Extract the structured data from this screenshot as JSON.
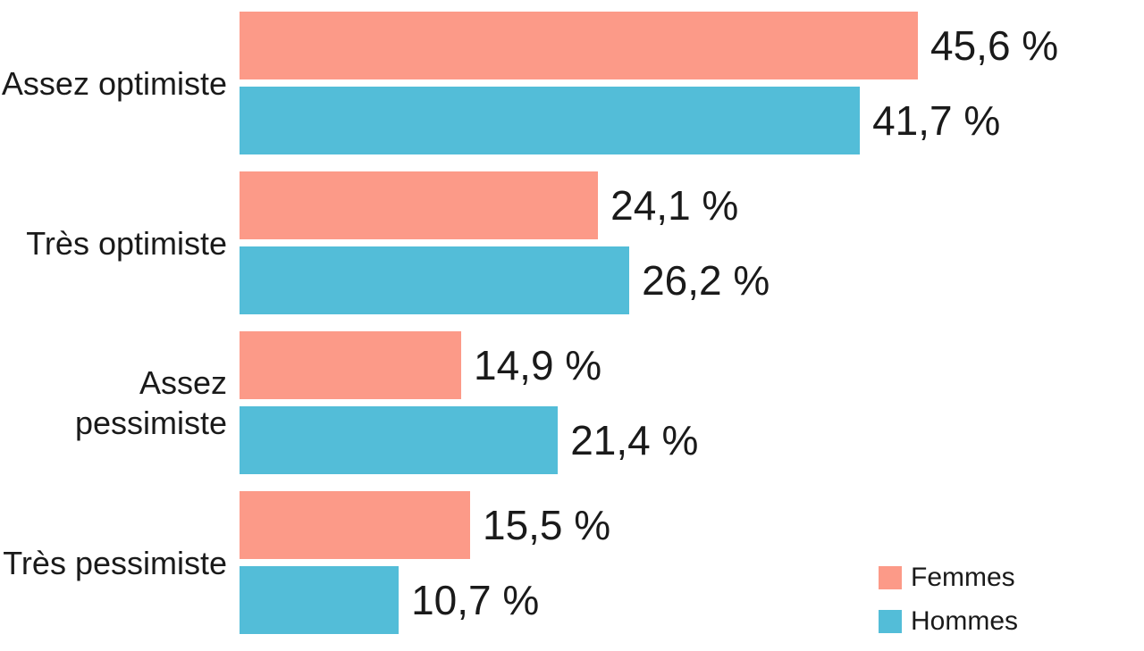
{
  "chart_data": {
    "type": "bar",
    "orientation": "horizontal",
    "title": "",
    "categories": [
      "Assez optimiste",
      "Très optimiste",
      "Assez pessimiste",
      "Très pessimiste"
    ],
    "series": [
      {
        "name": "Femmes",
        "color": "#FC9A88",
        "values": [
          45.6,
          24.1,
          14.9,
          15.5
        ],
        "labels": [
          "45,6 %",
          "24,1 %",
          "14,9 %",
          "15,5 %"
        ]
      },
      {
        "name": "Hommes",
        "color": "#53BDD8",
        "values": [
          41.7,
          26.2,
          21.4,
          10.7
        ],
        "labels": [
          "41,7 %",
          "26,2 %",
          "21,4 %",
          "10,7 %"
        ]
      }
    ],
    "xlim": [
      0,
      60.8
    ],
    "value_suffix": " %",
    "decimal_separator": ",",
    "grid": false,
    "axis_lines": false,
    "legend_position": "bottom-right",
    "text_color": "#1a1a1a",
    "background_color": "#ffffff"
  }
}
